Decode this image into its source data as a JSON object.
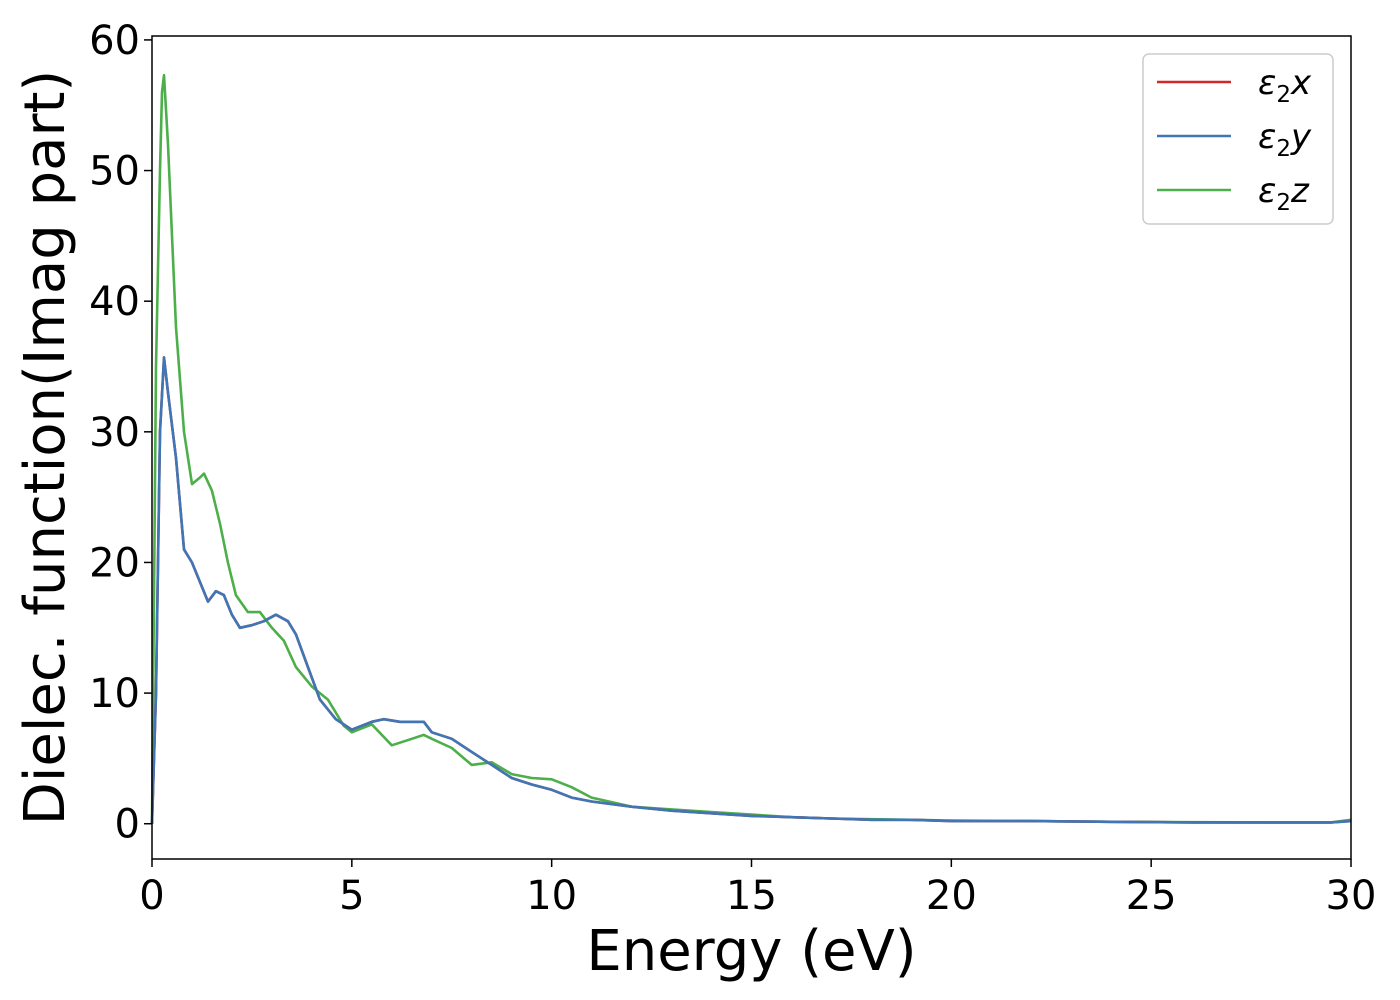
{
  "chart_data": {
    "type": "line",
    "xlabel": "Energy (eV)",
    "ylabel": "Dielec. function(Imag part)",
    "xlim": [
      0,
      30
    ],
    "ylim": [
      -2.7,
      60.3
    ],
    "xticks": [
      "0",
      "5",
      "10",
      "15",
      "20",
      "25",
      "30"
    ],
    "yticks": [
      "0",
      "10",
      "20",
      "30",
      "40",
      "50",
      "60"
    ],
    "grid": false,
    "legend_position": "top-right",
    "series": [
      {
        "name": "ε₂x",
        "legend_base": "ε",
        "legend_sub": "2",
        "legend_var": "x",
        "color": "#d62728",
        "x": [
          0,
          0.1,
          0.2,
          0.3,
          0.4,
          0.6,
          0.8,
          1.0,
          1.2,
          1.4,
          1.6,
          1.8,
          2.0,
          2.2,
          2.5,
          2.8,
          3.1,
          3.4,
          3.6,
          3.9,
          4.2,
          4.6,
          5.0,
          5.5,
          5.8,
          6.2,
          6.5,
          6.8,
          7.0,
          7.5,
          8.0,
          8.5,
          9.0,
          9.5,
          10.0,
          10.5,
          11.0,
          12.0,
          13.0,
          14.0,
          15.0,
          16.0,
          17.0,
          18.0,
          19.0,
          20.0,
          22.0,
          24.0,
          26.0,
          28.0,
          29.5,
          30.0
        ],
        "values": [
          0,
          10,
          30,
          35.7,
          33,
          28,
          21,
          20,
          18.5,
          17,
          17.8,
          17.5,
          16,
          15,
          15.2,
          15.5,
          16,
          15.5,
          14.5,
          12,
          9.5,
          8,
          7.2,
          7.8,
          8,
          7.8,
          7.8,
          7.8,
          7,
          6.5,
          5.5,
          4.5,
          3.5,
          3,
          2.6,
          2.0,
          1.7,
          1.3,
          1.0,
          0.8,
          0.6,
          0.5,
          0.4,
          0.3,
          0.3,
          0.2,
          0.2,
          0.15,
          0.1,
          0.1,
          0.1,
          0.2
        ]
      },
      {
        "name": "ε₂y",
        "legend_base": "ε",
        "legend_sub": "2",
        "legend_var": "y",
        "color": "#3e76b6",
        "x": [
          0,
          0.1,
          0.2,
          0.3,
          0.4,
          0.6,
          0.8,
          1.0,
          1.2,
          1.4,
          1.6,
          1.8,
          2.0,
          2.2,
          2.5,
          2.8,
          3.1,
          3.4,
          3.6,
          3.9,
          4.2,
          4.6,
          5.0,
          5.5,
          5.8,
          6.2,
          6.5,
          6.8,
          7.0,
          7.5,
          8.0,
          8.5,
          9.0,
          9.5,
          10.0,
          10.5,
          11.0,
          12.0,
          13.0,
          14.0,
          15.0,
          16.0,
          17.0,
          18.0,
          19.0,
          20.0,
          22.0,
          24.0,
          26.0,
          28.0,
          29.5,
          30.0
        ],
        "values": [
          0,
          10,
          30,
          35.7,
          33,
          28,
          21,
          20,
          18.5,
          17,
          17.8,
          17.5,
          16,
          15,
          15.2,
          15.5,
          16,
          15.5,
          14.5,
          12,
          9.5,
          8,
          7.2,
          7.8,
          8,
          7.8,
          7.8,
          7.8,
          7,
          6.5,
          5.5,
          4.5,
          3.5,
          3,
          2.6,
          2.0,
          1.7,
          1.3,
          1.0,
          0.8,
          0.6,
          0.5,
          0.4,
          0.3,
          0.3,
          0.2,
          0.2,
          0.15,
          0.1,
          0.1,
          0.1,
          0.2
        ]
      },
      {
        "name": "ε₂z",
        "legend_base": "ε",
        "legend_sub": "2",
        "legend_var": "z",
        "color": "#4daf4a",
        "x": [
          0,
          0.1,
          0.2,
          0.25,
          0.3,
          0.4,
          0.6,
          0.8,
          1.0,
          1.2,
          1.3,
          1.5,
          1.7,
          1.9,
          2.1,
          2.4,
          2.7,
          3.0,
          3.3,
          3.6,
          4.0,
          4.4,
          4.8,
          5.0,
          5.5,
          6.0,
          6.5,
          6.8,
          7.0,
          7.5,
          8.0,
          8.5,
          9.0,
          9.5,
          10.0,
          10.5,
          11.0,
          12.0,
          13.0,
          14.0,
          15.0,
          16.0,
          17.0,
          18.0,
          19.0,
          20.0,
          22.0,
          24.0,
          26.0,
          28.0,
          29.5,
          30.0
        ],
        "values": [
          0,
          35,
          50,
          56,
          57.3,
          52,
          38,
          30,
          26,
          26.5,
          26.8,
          25.5,
          23,
          20,
          17.5,
          16.2,
          16.2,
          15,
          14,
          12,
          10.5,
          9.5,
          7.5,
          7,
          7.6,
          6,
          6.5,
          6.8,
          6.5,
          5.8,
          4.5,
          4.7,
          3.8,
          3.5,
          3.4,
          2.8,
          2.0,
          1.3,
          1.1,
          0.9,
          0.7,
          0.5,
          0.4,
          0.35,
          0.3,
          0.25,
          0.2,
          0.15,
          0.12,
          0.1,
          0.1,
          0.3
        ]
      }
    ]
  }
}
